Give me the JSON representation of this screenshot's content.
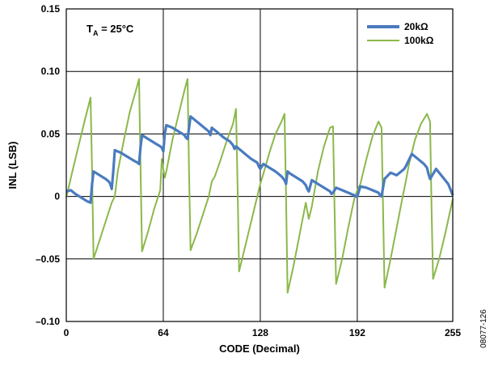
{
  "chart_data": {
    "type": "line",
    "title": "",
    "xlabel": "CODE (Decimal)",
    "ylabel": "INL (LSB)",
    "xlim": [
      0,
      255
    ],
    "ylim": [
      -0.1,
      0.15
    ],
    "x_ticks": [
      0,
      64,
      128,
      192,
      255
    ],
    "x_tick_labels": [
      "0",
      "64",
      "128",
      "192",
      "255"
    ],
    "y_ticks": [
      -0.1,
      -0.05,
      0,
      0.05,
      0.1,
      0.15
    ],
    "y_tick_labels": [
      "–0.10",
      "–0.05",
      "0",
      "0.05",
      "0.10",
      "0.15"
    ],
    "grid": true,
    "legend_position": "top-right",
    "annotation": {
      "main": "T",
      "sub": "A",
      "rest": " = 25°C"
    },
    "figure_id": "08077-126",
    "series": [
      {
        "name": "20kΩ",
        "color": "#4a7bbf",
        "x": [
          0,
          3,
          6,
          10,
          14,
          16,
          17,
          18,
          22,
          26,
          28,
          29,
          30,
          31,
          32,
          36,
          40,
          44,
          47,
          48,
          49,
          50,
          54,
          58,
          62,
          63,
          64,
          65,
          66,
          70,
          74,
          78,
          79,
          80,
          82,
          86,
          90,
          94,
          95,
          96,
          100,
          104,
          108,
          110,
          111,
          112,
          114,
          118,
          122,
          126,
          127,
          128,
          130,
          134,
          138,
          142,
          144,
          145,
          146,
          148,
          152,
          156,
          158,
          159,
          160,
          162,
          166,
          170,
          174,
          175,
          176,
          178,
          182,
          186,
          190,
          191,
          192,
          194,
          198,
          202,
          206,
          207,
          208,
          210,
          214,
          218,
          222,
          223,
          224,
          228,
          232,
          236,
          238,
          239,
          240,
          244,
          248,
          252,
          255
        ],
        "y": [
          0.004,
          0.005,
          0.002,
          -0.001,
          -0.004,
          -0.005,
          0.01,
          0.02,
          0.017,
          0.014,
          0.012,
          0.01,
          0.006,
          0.02,
          0.037,
          0.035,
          0.032,
          0.029,
          0.027,
          0.026,
          0.04,
          0.049,
          0.046,
          0.043,
          0.04,
          0.039,
          0.036,
          0.05,
          0.057,
          0.055,
          0.052,
          0.049,
          0.047,
          0.046,
          0.064,
          0.06,
          0.056,
          0.052,
          0.049,
          0.055,
          0.051,
          0.047,
          0.044,
          0.041,
          0.038,
          0.04,
          0.038,
          0.034,
          0.03,
          0.027,
          0.024,
          0.022,
          0.026,
          0.023,
          0.02,
          0.016,
          0.013,
          0.01,
          0.02,
          0.018,
          0.015,
          0.012,
          0.009,
          0.006,
          0.004,
          0.013,
          0.01,
          0.007,
          0.004,
          0.002,
          0.003,
          0.007,
          0.005,
          0.003,
          0.001,
          0.0,
          0.0,
          0.008,
          0.007,
          0.005,
          0.003,
          0.001,
          0.0,
          0.014,
          0.019,
          0.017,
          0.021,
          0.022,
          0.024,
          0.034,
          0.03,
          0.026,
          0.023,
          0.018,
          0.014,
          0.022,
          0.016,
          0.01,
          0.001
        ]
      },
      {
        "name": "100kΩ",
        "color": "#8bb84a",
        "x": [
          0,
          4,
          8,
          12,
          16,
          17,
          18,
          22,
          26,
          30,
          32,
          34,
          38,
          42,
          46,
          48,
          49,
          50,
          54,
          58,
          62,
          63,
          64,
          65,
          66,
          70,
          74,
          78,
          80,
          81,
          82,
          86,
          90,
          94,
          96,
          98,
          102,
          106,
          110,
          112,
          113,
          114,
          118,
          122,
          126,
          128,
          130,
          134,
          138,
          142,
          144,
          145,
          146,
          150,
          154,
          158,
          160,
          162,
          166,
          170,
          174,
          176,
          177,
          178,
          182,
          186,
          190,
          192,
          194,
          198,
          202,
          206,
          208,
          209,
          210,
          214,
          218,
          222,
          224,
          226,
          230,
          234,
          238,
          240,
          241,
          242,
          246,
          250,
          255
        ],
        "y": [
          -0.001,
          0.02,
          0.04,
          0.06,
          0.079,
          0.02,
          -0.05,
          -0.035,
          -0.02,
          -0.005,
          0.0,
          0.02,
          0.045,
          0.068,
          0.085,
          0.094,
          0.02,
          -0.044,
          -0.028,
          -0.01,
          0.005,
          0.03,
          0.022,
          0.015,
          0.02,
          0.045,
          0.065,
          0.085,
          0.094,
          0.02,
          -0.043,
          -0.03,
          -0.015,
          0.0,
          0.012,
          0.016,
          0.03,
          0.045,
          0.058,
          0.07,
          0.01,
          -0.06,
          -0.04,
          -0.02,
          0.0,
          0.01,
          0.018,
          0.035,
          0.05,
          0.06,
          0.066,
          0.0,
          -0.077,
          -0.055,
          -0.03,
          -0.005,
          -0.018,
          -0.008,
          0.02,
          0.04,
          0.055,
          0.056,
          -0.01,
          -0.07,
          -0.05,
          -0.025,
          -0.002,
          0.005,
          0.01,
          0.03,
          0.048,
          0.06,
          0.055,
          -0.01,
          -0.073,
          -0.05,
          -0.025,
          0.0,
          0.012,
          0.025,
          0.045,
          0.058,
          0.066,
          0.06,
          -0.01,
          -0.066,
          -0.05,
          -0.03,
          -0.002
        ]
      }
    ]
  }
}
